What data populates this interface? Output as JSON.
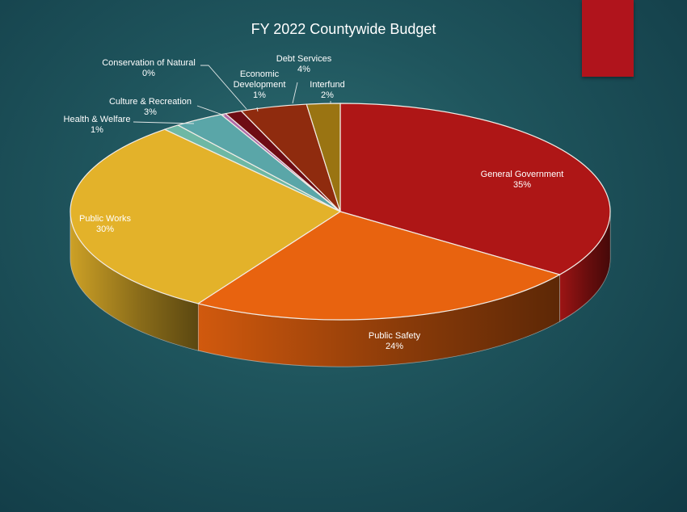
{
  "chart_data": {
    "type": "pie",
    "title": "FY 2022 Countywide Budget",
    "slices": [
      {
        "label": "General Government",
        "value": 35,
        "pct_label": "35%",
        "color": "#ae1616"
      },
      {
        "label": "Public Safety",
        "value": 24,
        "pct_label": "24%",
        "color": "#e8630f"
      },
      {
        "label": "Public Works",
        "value": 30,
        "pct_label": "30%",
        "color": "#e3b22a"
      },
      {
        "label": "Health & Welfare",
        "value": 1,
        "pct_label": "1%",
        "color": "#6eb8a4"
      },
      {
        "label": "Culture & Recreation",
        "value": 3,
        "pct_label": "3%",
        "color": "#5aa6a8"
      },
      {
        "label": "Conservation of Natural",
        "value": 0.3,
        "pct_label": "0%",
        "color": "#b06aa8"
      },
      {
        "label": "Economic Development",
        "value": 1,
        "pct_label": "1%",
        "color": "#6e0c14"
      },
      {
        "label": "Debt Services",
        "value": 4,
        "pct_label": "4%",
        "color": "#8f2b0e"
      },
      {
        "label": "Interfund",
        "value": 2,
        "pct_label": "2%",
        "color": "#9a7412"
      }
    ],
    "legend": "none"
  },
  "accent_color": "#b0141c"
}
